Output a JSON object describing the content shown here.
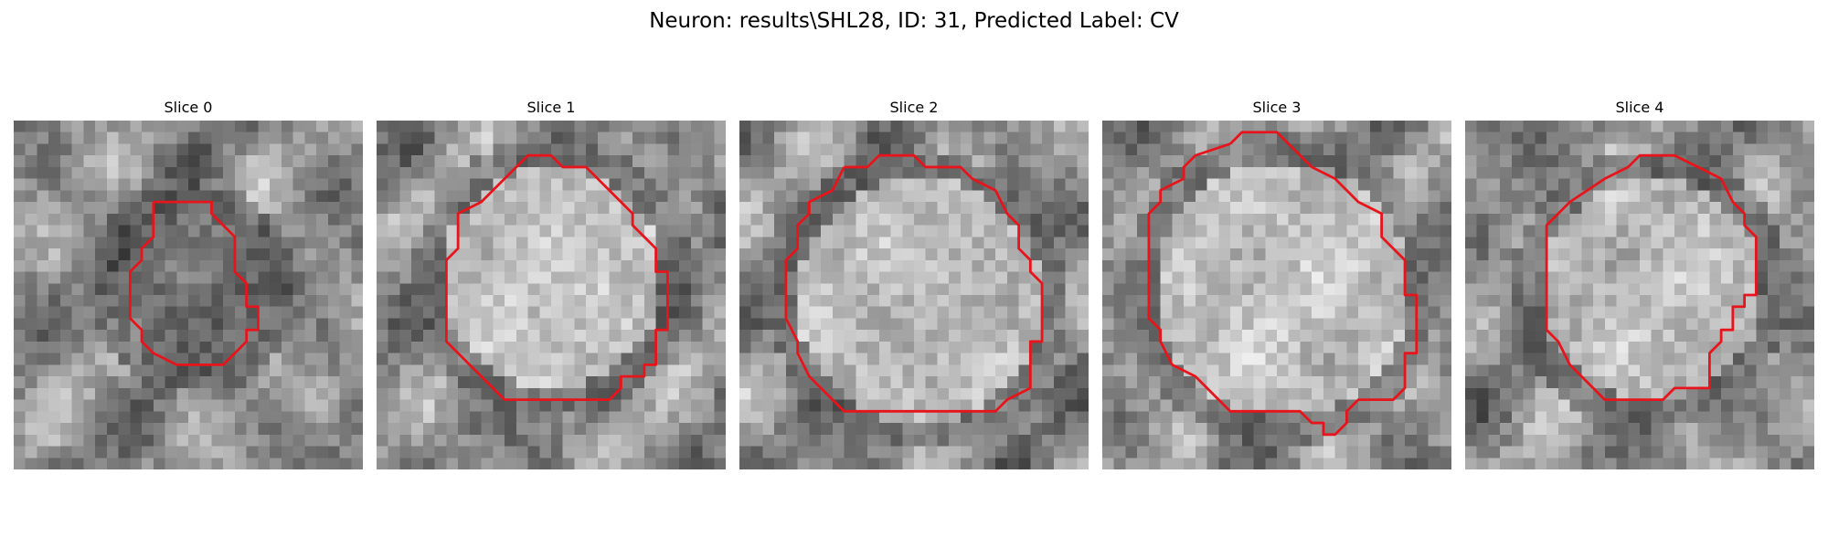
{
  "figure": {
    "title": "Neuron: results\\SHL28, ID: 31, Predicted Label: CV",
    "contour_color": "#e8141b"
  },
  "panels": [
    {
      "title": "Slice 0"
    },
    {
      "title": "Slice 1"
    },
    {
      "title": "Slice 2"
    },
    {
      "title": "Slice 3"
    },
    {
      "title": "Slice 4"
    }
  ]
}
